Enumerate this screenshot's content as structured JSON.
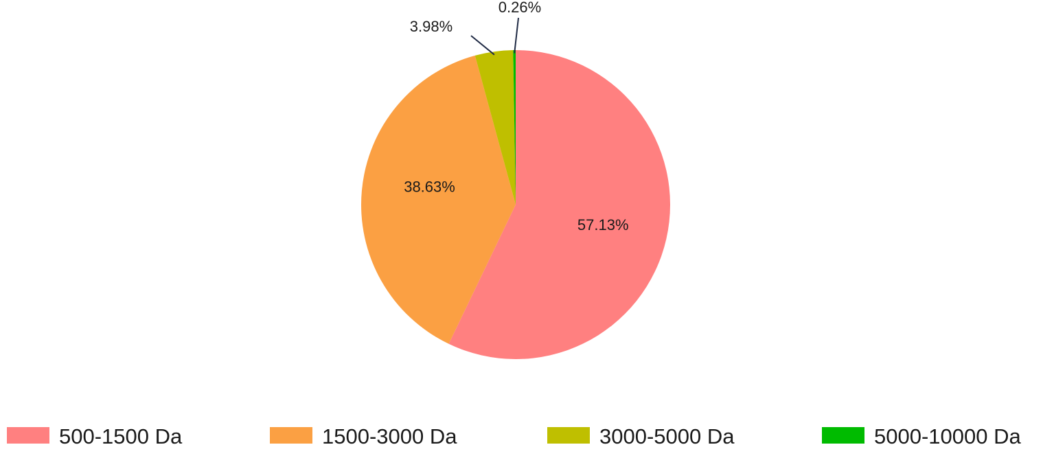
{
  "chart_data": {
    "type": "pie",
    "start_angle_deg": 0,
    "direction": "clockwise",
    "slices": [
      {
        "label": "500-1500 Da",
        "value": 57.13,
        "display": "57.13%",
        "color": "#FF8080"
      },
      {
        "label": "1500-3000 Da",
        "value": 38.63,
        "display": "38.63%",
        "color": "#FBA043"
      },
      {
        "label": "3000-5000 Da",
        "value": 3.98,
        "display": "3.98%",
        "color": "#BFBF00"
      },
      {
        "label": "5000-10000 Da",
        "value": 0.26,
        "display": "0.26%",
        "color": "#00BB00"
      }
    ],
    "legend": {
      "position": "bottom",
      "entries": [
        "500-1500 Da",
        "1500-3000 Da",
        "3000-5000 Da",
        "5000-10000 Da"
      ]
    }
  }
}
